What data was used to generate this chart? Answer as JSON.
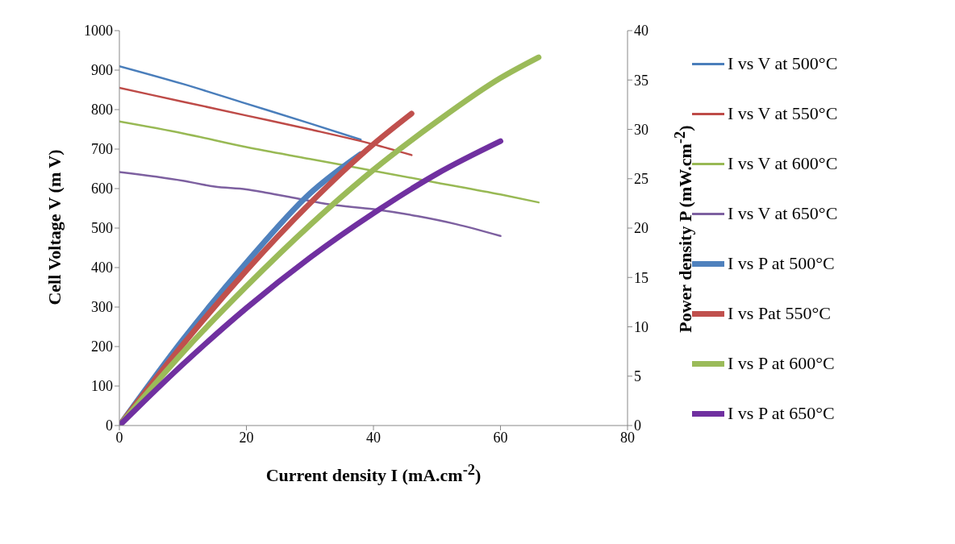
{
  "chart_data": {
    "type": "line",
    "xlabel": "Current density I (mA.cm$^{-2}$)",
    "ylabel": "Cell  Voltage V (m V)",
    "y2label": "Power  density P (mW.cm$^{-2}$)",
    "xlim": [
      0,
      80
    ],
    "xticks": [
      0,
      20,
      40,
      60,
      80
    ],
    "ylim": [
      0,
      1000
    ],
    "yticks": [
      0,
      100,
      200,
      300,
      400,
      500,
      600,
      700,
      800,
      900,
      1000
    ],
    "y2lim": [
      0,
      40
    ],
    "y2ticks": [
      0,
      5,
      10,
      15,
      20,
      25,
      30,
      35,
      40
    ],
    "legend": "right",
    "marker": "none",
    "line_style": "solid",
    "series": [
      {
        "name": "I vs V at 500°C",
        "color": "#4a7ebb",
        "x": [
          0,
          10,
          20,
          30,
          38
        ],
        "values": [
          910,
          865,
          815,
          765,
          724
        ]
      },
      {
        "name": "I vs V at 550°C",
        "color": "#be4b48",
        "x": [
          0,
          10,
          20,
          30,
          40,
          46
        ],
        "values": [
          855,
          820,
          785,
          750,
          712,
          685
        ]
      },
      {
        "name": "I vs V at 600°C",
        "color": "#98b954",
        "x": [
          0,
          10,
          20,
          30,
          40,
          50,
          60,
          66
        ],
        "values": [
          770,
          740,
          705,
          675,
          645,
          615,
          585,
          565
        ]
      },
      {
        "name": "I vs V at 650°C",
        "color": "#7d60a0",
        "x": [
          0,
          10,
          15,
          20,
          23,
          28,
          33,
          40,
          47,
          53,
          60
        ],
        "values": [
          642,
          620,
          605,
          598,
          590,
          575,
          560,
          548,
          530,
          510,
          480
        ]
      },
      {
        "name": "I vs P at 500°C",
        "color": "#4f81bd",
        "axis": "y2",
        "x": [
          0,
          10,
          20,
          30,
          38
        ],
        "values": [
          0,
          8.7,
          16.5,
          23.5,
          27.5
        ]
      },
      {
        "name": "I vs Pat 550°C",
        "color": "#c0504d",
        "axis": "y2",
        "x": [
          0,
          10,
          20,
          30,
          40,
          46
        ],
        "values": [
          0,
          8.2,
          15.7,
          22.5,
          28.5,
          31.6
        ]
      },
      {
        "name": "I vs P at 600°C",
        "color": "#9bbb59",
        "axis": "y2",
        "x": [
          0,
          10,
          20,
          30,
          40,
          50,
          60,
          66
        ],
        "values": [
          0,
          7.4,
          14.1,
          20.3,
          25.9,
          30.8,
          35.2,
          37.3
        ]
      },
      {
        "name": "I vs P at 650°C",
        "color": "#7030a0",
        "axis": "y2",
        "x": [
          0,
          10,
          20,
          30,
          40,
          50,
          60
        ],
        "values": [
          0,
          6.2,
          11.9,
          17.0,
          21.5,
          25.5,
          28.8
        ]
      }
    ]
  }
}
